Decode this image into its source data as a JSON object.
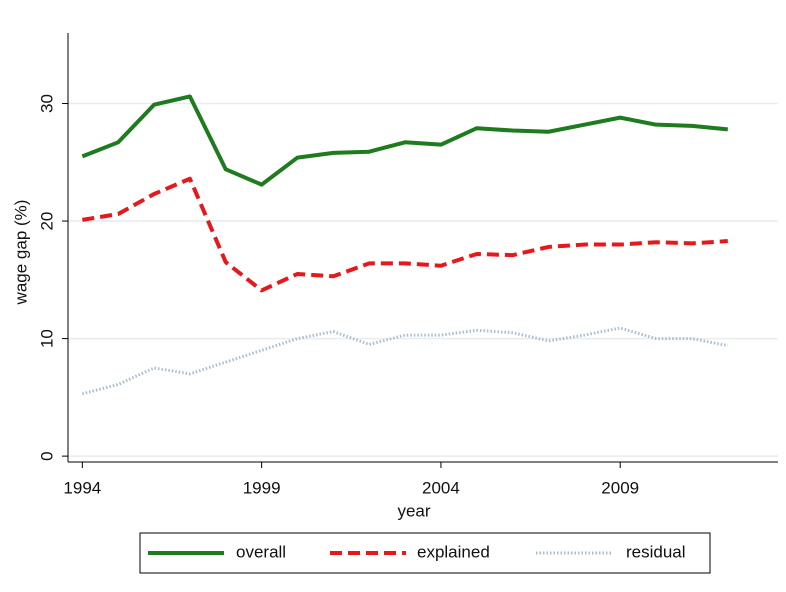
{
  "chart_data": {
    "type": "line",
    "x_label": "year",
    "y_label": "wage gap (%)",
    "x": [
      1994,
      1995,
      1996,
      1997,
      1998,
      1999,
      2000,
      2001,
      2002,
      2003,
      2004,
      2005,
      2006,
      2007,
      2008,
      2009,
      2010,
      2011,
      2012
    ],
    "series": [
      {
        "name": "overall",
        "color": "#1e7b1e",
        "dash": "solid",
        "values": [
          25.5,
          26.7,
          29.9,
          30.6,
          24.4,
          23.1,
          25.4,
          25.8,
          25.9,
          26.7,
          26.5,
          27.9,
          27.7,
          27.6,
          28.2,
          28.8,
          28.2,
          28.1,
          27.8
        ]
      },
      {
        "name": "explained",
        "color": "#e8171b",
        "dash": "dashed",
        "values": [
          20.1,
          20.6,
          22.3,
          23.6,
          16.5,
          14.1,
          15.5,
          15.3,
          16.4,
          16.4,
          16.2,
          17.2,
          17.1,
          17.8,
          18.0,
          18.0,
          18.2,
          18.1,
          18.3
        ]
      },
      {
        "name": "residual",
        "color": "#a9bdd2",
        "dash": "dotted",
        "values": [
          5.3,
          6.1,
          7.5,
          7.0,
          8.0,
          9.0,
          10.0,
          10.6,
          9.5,
          10.3,
          10.3,
          10.7,
          10.5,
          9.8,
          10.3,
          10.9,
          10.0,
          10.0,
          9.4
        ]
      }
    ],
    "xlim": [
      1993.6,
      2013.4
    ],
    "xticks": [
      1994,
      1999,
      2004,
      2009
    ],
    "ylim": [
      -0.5,
      36
    ],
    "yticks": [
      0,
      10,
      20,
      30
    ],
    "grid": true
  }
}
